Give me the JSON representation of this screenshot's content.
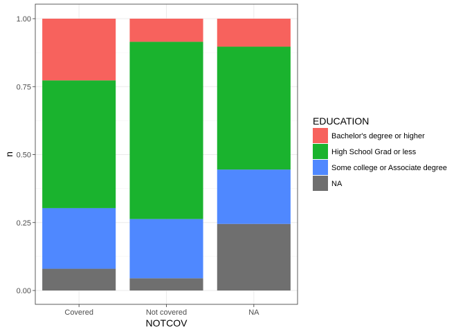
{
  "chart_data": {
    "type": "bar",
    "stacked": true,
    "title": "",
    "xlabel": "NOTCOV",
    "ylabel": "n",
    "ylim": [
      0,
      1
    ],
    "yticks": [
      "0.00",
      "0.25",
      "0.50",
      "0.75",
      "1.00"
    ],
    "ytick_values": [
      0,
      0.25,
      0.5,
      0.75,
      1.0
    ],
    "grid": true,
    "legend_title": "EDUCATION",
    "legend_position": "right",
    "categories": [
      "Covered",
      "Not covered",
      "NA"
    ],
    "series": [
      {
        "name": "NA",
        "color": "#6f6f6f",
        "values": [
          0.08,
          0.045,
          0.245
        ]
      },
      {
        "name": "Some college or Associate degree",
        "color": "#4f88ff",
        "values": [
          0.223,
          0.218,
          0.2
        ]
      },
      {
        "name": "High School Grad or less",
        "color": "#1ab32e",
        "values": [
          0.47,
          0.652,
          0.452
        ]
      },
      {
        "name": "Bachelor's degree or higher",
        "color": "#f7625d",
        "values": [
          0.227,
          0.085,
          0.103
        ]
      }
    ],
    "legend_order": [
      "Bachelor's degree or higher",
      "High School Grad or less",
      "Some college or Associate degree",
      "NA"
    ]
  }
}
